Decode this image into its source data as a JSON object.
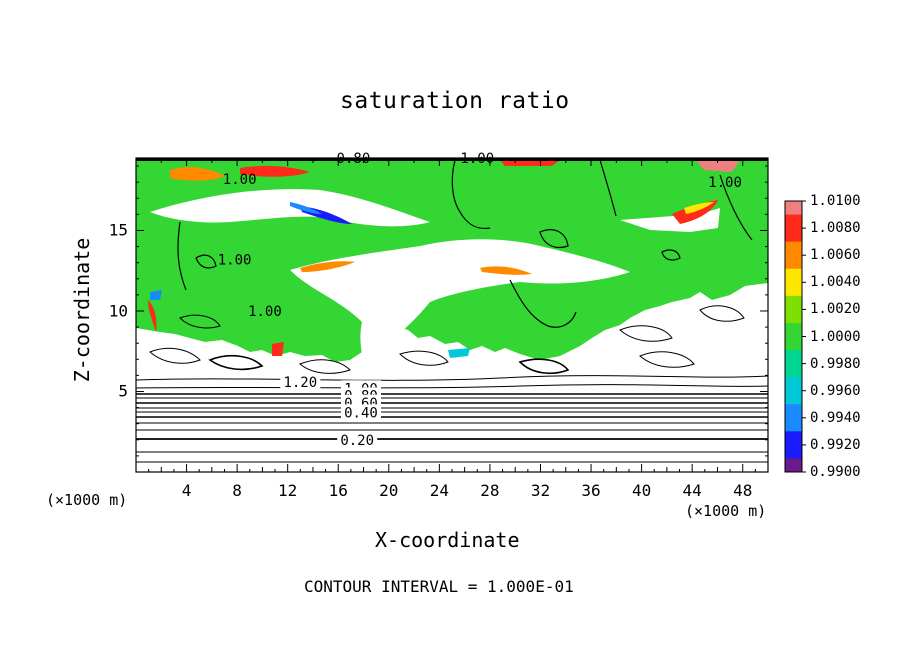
{
  "chart_data": {
    "type": "heatmap",
    "title": "saturation ratio",
    "xlabel": "X-coordinate",
    "ylabel": "Z-coordinate",
    "x_unit": "(×1000 m)",
    "z_unit": "(×1000 m)",
    "xlim": [
      0,
      50
    ],
    "ylim": [
      0,
      19.5
    ],
    "x_ticks": [
      4,
      8,
      12,
      16,
      20,
      24,
      28,
      32,
      36,
      40,
      44,
      48
    ],
    "y_ticks": [
      5,
      10,
      15
    ],
    "footer": "CONTOUR INTERVAL = 1.000E-01",
    "colorbar": {
      "levels": [
        "1.0100",
        "1.0080",
        "1.0060",
        "1.0040",
        "1.0020",
        "1.0000",
        "0.9980",
        "0.9960",
        "0.9940",
        "0.9920",
        "0.9900"
      ],
      "colors": [
        "#f08080",
        "#ff2a1a",
        "#ff8a00",
        "#ffe600",
        "#7fe000",
        "#33d633",
        "#00d694",
        "#00c8d6",
        "#1a8aff",
        "#1a1aff",
        "#6a1a8a"
      ]
    },
    "contour_labels": [
      {
        "text": "0.80",
        "x": 17.2,
        "z": 19.5
      },
      {
        "text": "1.00",
        "x": 27.0,
        "z": 19.5
      },
      {
        "text": "1.00",
        "x": 8.2,
        "z": 18.2
      },
      {
        "text": "1.00",
        "x": 46.6,
        "z": 18.0
      },
      {
        "text": "1.00",
        "x": 7.8,
        "z": 13.2
      },
      {
        "text": "1.00",
        "x": 10.2,
        "z": 10.0
      },
      {
        "text": "1.20",
        "x": 13.0,
        "z": 5.6
      },
      {
        "text": "1.00",
        "x": 17.8,
        "z": 5.2
      },
      {
        "text": "0.80",
        "x": 17.8,
        "z": 4.75
      },
      {
        "text": "0.60",
        "x": 17.8,
        "z": 4.3
      },
      {
        "text": "0.40",
        "x": 17.8,
        "z": 3.7
      },
      {
        "text": "0.20",
        "x": 17.5,
        "z": 2.0
      }
    ]
  }
}
